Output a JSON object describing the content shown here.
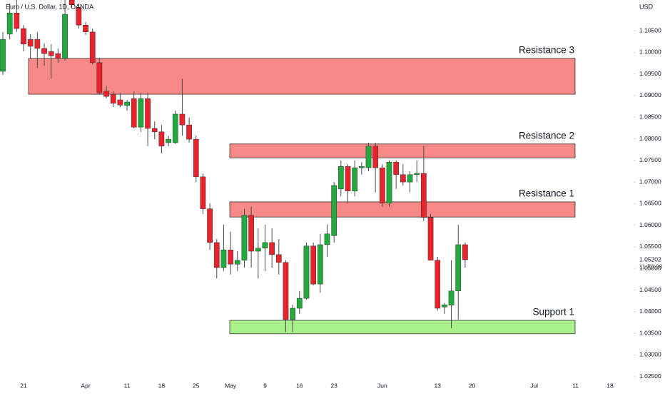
{
  "chart_data": {
    "type": "candlestick",
    "title": "Euro / U.S. Dollar, 1D, OANDA",
    "currency": "USD",
    "categories": [
      null,
      null,
      null,
      "21",
      null,
      null,
      null,
      null,
      null,
      null,
      null,
      null,
      "Apr",
      null,
      null,
      null,
      null,
      null,
      "11",
      null,
      null,
      null,
      null,
      "18",
      null,
      null,
      null,
      null,
      "25",
      null,
      null,
      null,
      null,
      "May",
      null,
      null,
      null,
      null,
      "9",
      null,
      null,
      null,
      null,
      "16",
      null,
      null,
      null,
      null,
      "23",
      null,
      null,
      null,
      null,
      null,
      null,
      "Jun",
      null,
      null,
      null,
      null,
      null,
      null,
      null,
      "13",
      null,
      null,
      null,
      null,
      "20",
      null,
      null,
      null,
      null,
      null,
      null,
      null,
      null,
      "Jul",
      null,
      null,
      null,
      null,
      null,
      "11",
      null,
      null,
      null,
      null,
      "18"
    ],
    "open": [
      1.0956,
      1.1042,
      1.1091,
      1.1055,
      1.103,
      1.103,
      1.1009,
      1.1002,
      1.0997,
      1.0986,
      1.1121,
      1.1104,
      1.1063,
      1.1047,
      1.0976,
      1.091,
      1.0903,
      1.089,
      1.0877,
      1.0893,
      1.0827,
      1.0893,
      1.0824,
      1.0816,
      1.0791,
      1.0791,
      1.0857,
      1.0832,
      1.0799,
      1.0712,
      1.0638,
      1.056,
      1.0502,
      1.0543,
      1.051,
      1.0519,
      1.0623,
      1.054,
      1.0547,
      1.056,
      1.0532,
      1.0514,
      1.0382,
      1.0408,
      1.0431,
      1.0552,
      1.0464,
      1.0555,
      1.0576,
      1.0684,
      1.0736,
      1.0679,
      1.0733,
      1.0733,
      1.0783,
      1.0733,
      1.0651,
      1.0746,
      1.0717,
      1.07,
      1.0717,
      1.072,
      1.0618,
      1.0519,
      1.0411,
      1.0415,
      1.0448,
      1.0555,
      null,
      null,
      null,
      null,
      null,
      null,
      null,
      null,
      null,
      null,
      null,
      null,
      null,
      null,
      null,
      null,
      null,
      null,
      null,
      null,
      null
    ],
    "high": [
      1.1047,
      1.1113,
      1.1121,
      1.1063,
      1.1042,
      1.1047,
      1.1021,
      1.1019,
      1.1009,
      1.1121,
      1.1121,
      1.1113,
      1.107,
      1.1055,
      1.0986,
      1.0923,
      1.091,
      1.0906,
      1.089,
      1.091,
      1.0906,
      1.0906,
      1.084,
      1.0832,
      1.0807,
      1.0865,
      1.0939,
      1.0849,
      1.0807,
      1.072,
      1.0651,
      1.0568,
      1.0601,
      1.0585,
      1.054,
      1.0638,
      1.0643,
      1.0593,
      1.0601,
      1.0593,
      1.0568,
      1.0519,
      1.0416,
      1.0448,
      1.056,
      1.056,
      1.058,
      1.0601,
      1.07,
      1.075,
      1.0741,
      1.075,
      1.0746,
      1.0791,
      1.0791,
      1.0741,
      1.075,
      1.075,
      1.0741,
      1.0725,
      1.075,
      1.0783,
      1.0626,
      1.0527,
      1.042,
      1.0519,
      1.0601,
      1.056,
      null,
      null,
      null,
      null,
      null,
      null,
      null,
      null,
      null,
      null,
      null,
      null,
      null,
      null,
      null,
      null,
      null,
      null,
      null,
      null,
      null
    ],
    "low": [
      1.0948,
      1.103,
      1.1047,
      1.1002,
      1.0986,
      1.0964,
      1.0969,
      1.0939,
      1.0976,
      1.0981,
      1.1104,
      1.1055,
      1.104,
      1.0972,
      1.0903,
      1.0893,
      1.0873,
      1.0873,
      1.0865,
      1.0824,
      1.0816,
      1.0783,
      1.0799,
      1.0766,
      1.0783,
      1.0788,
      1.0807,
      1.0791,
      1.07,
      1.0626,
      1.0543,
      1.0477,
      1.0494,
      1.0486,
      1.0494,
      1.0502,
      1.0502,
      1.0477,
      1.0494,
      1.0502,
      1.0486,
      1.0353,
      1.0353,
      1.0395,
      1.0428,
      1.0461,
      1.0444,
      1.0527,
      1.056,
      1.0667,
      1.0651,
      1.0667,
      1.0717,
      1.0725,
      1.0676,
      1.0643,
      1.0643,
      1.0684,
      1.0692,
      1.0676,
      1.07,
      1.061,
      1.0519,
      1.0403,
      1.0395,
      1.0362,
      1.0382,
      1.0502,
      null,
      null,
      null,
      null,
      null,
      null,
      null,
      null,
      null,
      null,
      null,
      null,
      null,
      null,
      null,
      null,
      null,
      null,
      null,
      null,
      null
    ],
    "close": [
      1.103,
      1.1091,
      1.1055,
      1.1019,
      1.1014,
      1.1009,
      1.0997,
      1.0992,
      1.0986,
      1.1088,
      1.111,
      1.1063,
      1.1047,
      1.0976,
      1.0906,
      1.0898,
      1.0882,
      1.0878,
      1.0885,
      1.0827,
      1.0893,
      1.0824,
      1.0816,
      1.0783,
      1.0799,
      1.0857,
      1.0832,
      1.0799,
      1.0712,
      1.0638,
      1.056,
      1.0502,
      1.0543,
      1.051,
      1.0519,
      1.0623,
      1.054,
      1.0547,
      1.056,
      1.0532,
      1.0514,
      1.0382,
      1.0408,
      1.0431,
      1.0552,
      1.0464,
      1.0555,
      1.058,
      1.0692,
      1.0736,
      1.0679,
      1.0733,
      1.0736,
      1.0783,
      1.0733,
      1.0651,
      1.0746,
      1.0717,
      1.07,
      1.0717,
      1.072,
      1.0618,
      1.0519,
      1.0408,
      1.0416,
      1.0448,
      1.0555,
      1.05202,
      null,
      null,
      null,
      null,
      null,
      null,
      null,
      null,
      null,
      null,
      null,
      null,
      null,
      null,
      null,
      null,
      null,
      null,
      null,
      null,
      null
    ],
    "up_color": "#22ab3c",
    "down_color": "#e8232b",
    "ylim": [
      1.0243,
      1.1121
    ],
    "yticks": [
      {
        "value": 1.025,
        "label": "1.02500"
      },
      {
        "value": 1.03,
        "label": "1.03000"
      },
      {
        "value": 1.035,
        "label": "1.03500"
      },
      {
        "value": 1.04,
        "label": "1.04000"
      },
      {
        "value": 1.045,
        "label": "1.04500"
      },
      {
        "value": 1.05,
        "label": "1.05000"
      },
      {
        "value": 1.055,
        "label": "1.05500"
      },
      {
        "value": 1.06,
        "label": "1.06000"
      },
      {
        "value": 1.065,
        "label": "1.06500"
      },
      {
        "value": 1.07,
        "label": "1.07000"
      },
      {
        "value": 1.075,
        "label": "1.07500"
      },
      {
        "value": 1.08,
        "label": "1.08000"
      },
      {
        "value": 1.085,
        "label": "1.08500"
      },
      {
        "value": 1.09,
        "label": "1.09000"
      },
      {
        "value": 1.095,
        "label": "1.09500"
      },
      {
        "value": 1.1,
        "label": "1.10000"
      },
      {
        "value": 1.105,
        "label": "1.10500"
      }
    ],
    "last_price": 1.05202,
    "countdown": "11:59:20",
    "zones": [
      {
        "label": "Resistance 3",
        "top": 1.0986,
        "bottom": 1.0903,
        "color": "#f78a87"
      },
      {
        "label": "Resistance 2",
        "top": 1.0788,
        "bottom": 1.0756,
        "color": "#f78a87"
      },
      {
        "label": "Resistance 1",
        "top": 1.0654,
        "bottom": 1.0619,
        "color": "#f78a87"
      },
      {
        "label": "Support 1",
        "top": 1.038,
        "bottom": 1.0349,
        "color": "#a8f08a"
      }
    ]
  }
}
